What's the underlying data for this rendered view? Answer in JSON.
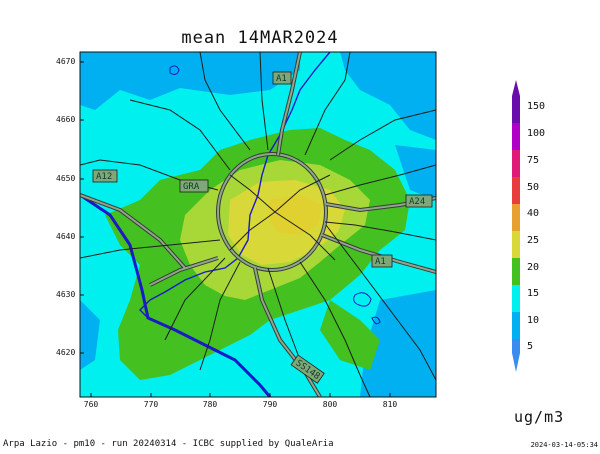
{
  "title": "mean 14MAR2024",
  "axes": {
    "y_ticks": [
      "4670",
      "4660",
      "4650",
      "4640",
      "4630",
      "4620"
    ],
    "x_ticks": [
      "760",
      "770",
      "780",
      "790",
      "800",
      "810"
    ]
  },
  "colorbar": {
    "levels": [
      "150",
      "100",
      "75",
      "50",
      "40",
      "25",
      "20",
      "15",
      "10",
      "5"
    ],
    "colors": [
      "#6a0dad",
      "#b000c8",
      "#e01a78",
      "#e83d3d",
      "#e8a030",
      "#d8d838",
      "#44c020",
      "#00f0f0",
      "#00b0f0",
      "#3a8cf0"
    ],
    "unit": "ug/m3"
  },
  "road_labels": [
    "A1",
    "A12",
    "GRA",
    "A24",
    "A1",
    "SS148"
  ],
  "footer": {
    "left": "Arpa Lazio - pm10 - run 20240314 - ICBC supplied by QualeAria",
    "right": "2024-03-14-05:34"
  }
}
